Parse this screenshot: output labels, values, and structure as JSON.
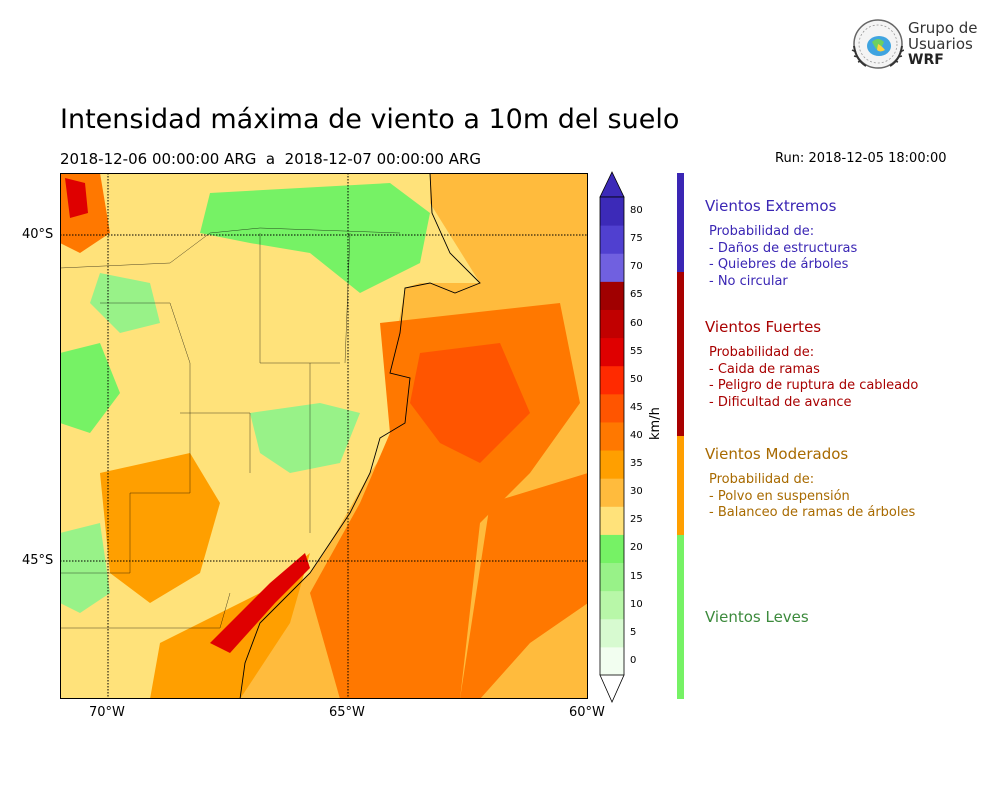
{
  "title": "Intensidad máxima de viento a 10m del suelo",
  "period": "2018-12-06 00:00:00 ARG  a  2018-12-07 00:00:00 ARG",
  "run": "Run: 2018-12-05 18:00:00",
  "logo": {
    "line1": "Grupo de",
    "line2": "Usuarios",
    "line3": "WRF",
    "icon": "wrf-globe-logo-icon"
  },
  "map": {
    "lat_labels": [
      "40°S",
      "45°S"
    ],
    "lon_labels": [
      "70°W",
      "65°W",
      "60°W"
    ],
    "extent": {
      "lon_min": -71,
      "lon_max": -60,
      "lat_min": -48.2,
      "lat_max": -39.2
    }
  },
  "colorbar": {
    "unit": "km/h",
    "ticks": [
      "0",
      "5",
      "10",
      "15",
      "20",
      "25",
      "30",
      "35",
      "40",
      "45",
      "50",
      "55",
      "60",
      "65",
      "70",
      "75",
      "80"
    ],
    "colors": [
      "#f2fef0",
      "#d7fad0",
      "#b8f7a8",
      "#98f288",
      "#76f265",
      "#ffe27a",
      "#ffbb3d",
      "#ff9f00",
      "#ff7800",
      "#ff5500",
      "#ff2a00",
      "#df0000",
      "#c10000",
      "#a00000",
      "#7060e0",
      "#5040d0",
      "#3c2ab8"
    ],
    "extend_colors": {
      "min": "#ffffff",
      "max": "#3c2ab8"
    }
  },
  "categories": [
    {
      "name": "Vientos Extremos",
      "color": "#3a26b4",
      "lines": [
        "Probabilidad de:",
        "- Daños de estructuras",
        "- Quiebres de árboles",
        "- No circular"
      ]
    },
    {
      "name": "Vientos Fuertes",
      "color": "#a80000",
      "lines": [
        "Probabilidad de:",
        "- Caida de ramas",
        "- Peligro de ruptura de cableado",
        "- Dificultad de avance"
      ]
    },
    {
      "name": "Vientos Moderados",
      "color": "#a86a00",
      "lines": [
        "Probabilidad de:",
        "- Polvo en suspensión",
        "- Balanceo de ramas de árboles"
      ]
    },
    {
      "name": "Vientos Leves",
      "color": "#3c8a3c",
      "lines": []
    }
  ],
  "category_bar": [
    {
      "color": "#3a26b4",
      "from": 65,
      "to": 80
    },
    {
      "color": "#a80000",
      "from": 40,
      "to": 65
    },
    {
      "color": "#ff9f00",
      "from": 25,
      "to": 40
    },
    {
      "color": "#76f265",
      "from": 0,
      "to": 25
    }
  ]
}
